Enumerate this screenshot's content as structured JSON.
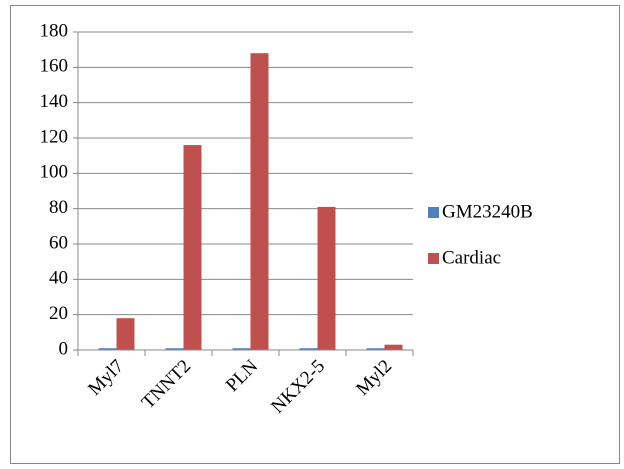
{
  "chart_data": {
    "type": "bar",
    "categories": [
      "Myl7",
      "TNNT2",
      "PLN",
      "NKX2-5",
      "Myl2"
    ],
    "series": [
      {
        "name": "GM23240B",
        "color": "#4f81bd",
        "values": [
          1,
          1,
          1,
          1,
          1
        ]
      },
      {
        "name": "Cardiac",
        "color": "#c0504d",
        "values": [
          18,
          116,
          168,
          81,
          3
        ]
      }
    ],
    "ylim": [
      0,
      180
    ],
    "yticks": [
      0,
      20,
      40,
      60,
      80,
      100,
      120,
      140,
      160,
      180
    ],
    "grid": true,
    "legend": "right"
  }
}
